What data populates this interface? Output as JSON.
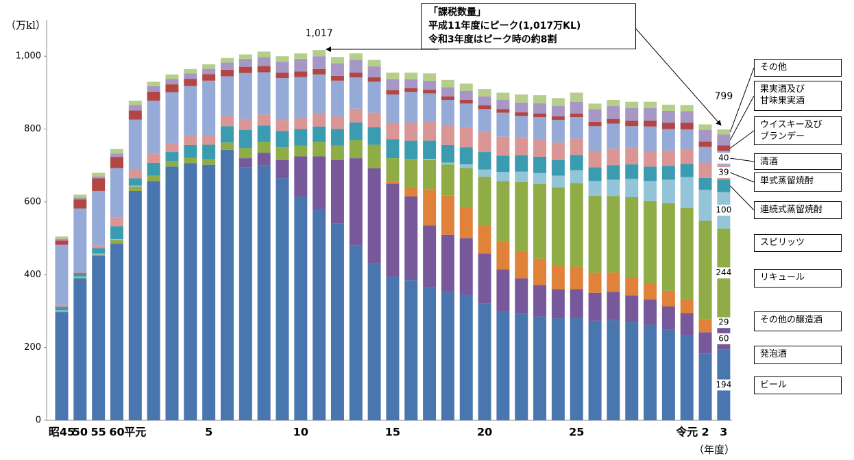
{
  "chart_data": {
    "type": "stacked_bar",
    "y_unit": "（万kl）",
    "x_unit": "（年度）",
    "annotation": "「課税数量」\n平成11年度にピーク(1,017万KL)\n令和3年度はピーク時の約8割",
    "peak_label": "1,017",
    "last_label": "799",
    "categories": [
      "昭45",
      "50",
      "55",
      "60",
      "平元",
      null,
      null,
      null,
      "5",
      null,
      null,
      null,
      null,
      "10",
      null,
      null,
      null,
      null,
      "15",
      null,
      null,
      null,
      null,
      "20",
      null,
      null,
      null,
      null,
      "25",
      null,
      null,
      null,
      null,
      null,
      "令元",
      "2",
      "3"
    ],
    "ylim": [
      0,
      1100
    ],
    "yticks": [
      0,
      200,
      400,
      600,
      800,
      {
        "value": 1000,
        "label": "1,000"
      }
    ],
    "series": [
      {
        "name": "ビール",
        "color": "#4a76b0",
        "show_last_label": true,
        "values": [
          297,
          390,
          452,
          485,
          630,
          657,
          697,
          706,
          702,
          743,
          695,
          700,
          665,
          615,
          580,
          540,
          480,
          430,
          395,
          385,
          365,
          352,
          345,
          320,
          300,
          293,
          285,
          280,
          283,
          273,
          275,
          270,
          262,
          250,
          235,
          184,
          194
        ]
      },
      {
        "name": "発泡酒",
        "color": "#77589a",
        "show_last_label": true,
        "values": [
          0,
          0,
          0,
          0,
          0,
          0,
          0,
          0,
          0,
          0,
          25,
          35,
          50,
          110,
          145,
          175,
          240,
          262,
          255,
          230,
          170,
          158,
          155,
          138,
          115,
          97,
          87,
          80,
          77,
          77,
          78,
          73,
          70,
          63,
          60,
          58,
          60
        ]
      },
      {
        "name": "その他の醸造酒",
        "color": "#e0823a",
        "show_last_label": true,
        "values": [
          0,
          0,
          0,
          0,
          0,
          0,
          0,
          0,
          0,
          0,
          0,
          0,
          0,
          0,
          0,
          0,
          0,
          0,
          5,
          25,
          100,
          108,
          83,
          78,
          77,
          75,
          72,
          65,
          62,
          55,
          53,
          50,
          45,
          43,
          38,
          36,
          29
        ]
      },
      {
        "name": "リキュール",
        "color": "#8fac46",
        "show_last_label": true,
        "values": [
          2,
          2,
          3,
          10,
          12,
          15,
          15,
          15,
          15,
          20,
          28,
          30,
          35,
          30,
          40,
          40,
          50,
          65,
          65,
          78,
          80,
          85,
          110,
          133,
          165,
          190,
          205,
          215,
          230,
          212,
          210,
          220,
          225,
          240,
          250,
          270,
          244
        ]
      },
      {
        "name": "スピリッツ",
        "color": "#93c4d8",
        "show_last_label": true,
        "values": [
          3,
          3,
          3,
          3,
          3,
          0,
          0,
          0,
          0,
          0,
          0,
          0,
          0,
          0,
          0,
          0,
          0,
          0,
          0,
          0,
          3,
          5,
          10,
          20,
          25,
          28,
          30,
          32,
          35,
          40,
          45,
          50,
          55,
          65,
          85,
          85,
          100
        ]
      },
      {
        "name": "連続式蒸留焼酎",
        "color": "#3b9bb0",
        "show_last_label": false,
        "values": [
          10,
          10,
          15,
          35,
          20,
          35,
          25,
          35,
          40,
          45,
          50,
          45,
          45,
          45,
          42,
          45,
          48,
          48,
          52,
          50,
          50,
          48,
          47,
          48,
          45,
          45,
          45,
          43,
          42,
          38,
          40,
          40,
          40,
          38,
          36,
          33,
          34
        ]
      },
      {
        "name": "単式蒸留焼酎",
        "color": "#d99694",
        "show_last_label": true,
        "values": [
          5,
          5,
          8,
          25,
          25,
          25,
          25,
          25,
          25,
          28,
          30,
          30,
          30,
          30,
          35,
          35,
          38,
          40,
          45,
          50,
          52,
          55,
          55,
          55,
          52,
          50,
          48,
          48,
          45,
          45,
          45,
          45,
          43,
          42,
          42,
          42,
          39
        ]
      },
      {
        "name": "清酒",
        "color": "#95aad6",
        "show_last_label": true,
        "values": [
          165,
          172,
          149,
          135,
          136,
          146,
          139,
          137,
          151,
          109,
          126,
          116,
          115,
          113,
          108,
          98,
          86,
          85,
          78,
          84,
          78,
          69,
          65,
          63,
          66,
          58,
          61,
          62,
          59,
          68,
          69,
          60,
          67,
          59,
          53,
          43,
          40
        ]
      },
      {
        "name": "ウイスキー及び\nブランデー",
        "color": "#b24644",
        "show_last_label": false,
        "values": [
          12,
          25,
          35,
          30,
          25,
          25,
          22,
          20,
          18,
          18,
          17,
          17,
          15,
          15,
          15,
          13,
          13,
          12,
          12,
          10,
          10,
          10,
          10,
          10,
          10,
          10,
          10,
          10,
          10,
          12,
          13,
          15,
          16,
          17,
          18,
          15,
          15
        ]
      },
      {
        "name": "果実酒及び\n甘味果実酒",
        "color": "#a797c4",
        "show_last_label": false,
        "values": [
          5,
          5,
          5,
          10,
          15,
          15,
          15,
          15,
          15,
          20,
          22,
          25,
          30,
          35,
          35,
          35,
          35,
          30,
          30,
          25,
          25,
          25,
          25,
          25,
          25,
          27,
          28,
          28,
          32,
          35,
          35,
          35,
          35,
          33,
          32,
          32,
          30
        ]
      },
      {
        "name": "その他",
        "color": "#b5cf8a",
        "show_last_label": false,
        "values": [
          6,
          8,
          10,
          12,
          12,
          12,
          12,
          12,
          12,
          12,
          12,
          15,
          15,
          15,
          17,
          17,
          18,
          18,
          18,
          18,
          20,
          20,
          20,
          20,
          20,
          22,
          22,
          22,
          25,
          15,
          17,
          17,
          17,
          17,
          17,
          15,
          14
        ]
      }
    ]
  }
}
